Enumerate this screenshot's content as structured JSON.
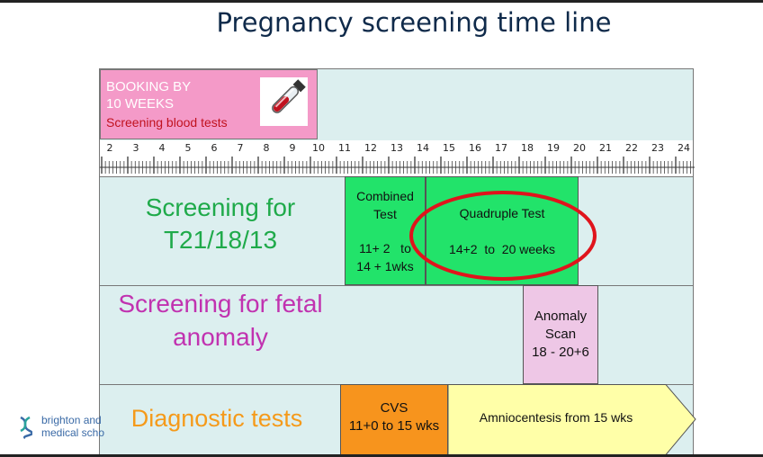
{
  "title": "Pregnancy screening time line",
  "booking": {
    "line1": "BOOKING BY",
    "line2": "10 WEEKS",
    "line3": "Screening blood tests",
    "icon": "blood-test-tube-icon"
  },
  "ruler": {
    "weeks": [
      "2",
      "3",
      "4",
      "5",
      "6",
      "7",
      "8",
      "9",
      "10",
      "11",
      "12",
      "13",
      "14",
      "15",
      "16",
      "17",
      "18",
      "19",
      "20",
      "21",
      "22",
      "23",
      "24"
    ]
  },
  "rows": {
    "screening_t21": {
      "label_line1": "Screening for",
      "label_line2": "T21/18/13",
      "color": "#1faa4a",
      "combined": {
        "title_line1": "Combined",
        "title_line2": "Test",
        "range_line1": "11+ 2   to",
        "range_line2": "14 + 1wks",
        "color": "#22e36a"
      },
      "quadruple": {
        "title": "Quadruple Test",
        "range": "14+2  to  20 weeks",
        "color": "#22e36a"
      }
    },
    "fetal_anomaly": {
      "label_line1": "Screening for fetal",
      "label_line2": "anomaly",
      "color": "#c132b0",
      "anomaly_scan": {
        "line1": "Anomaly",
        "line2": "Scan",
        "line3": "18 - 20+6",
        "color": "#eec7e6"
      }
    },
    "diagnostic": {
      "label": "Diagnostic tests",
      "color": "#f59a1a",
      "cvs": {
        "line1": "CVS",
        "line2": "11+0 to 15 wks",
        "color": "#f7941d"
      },
      "amnio": {
        "text": "Amniocentesis from 15 wks",
        "color": "#ffffa8"
      }
    }
  },
  "highlight": {
    "color": "#e0141c"
  },
  "logo": {
    "line1": "brighton and",
    "line2": "medical scho"
  }
}
